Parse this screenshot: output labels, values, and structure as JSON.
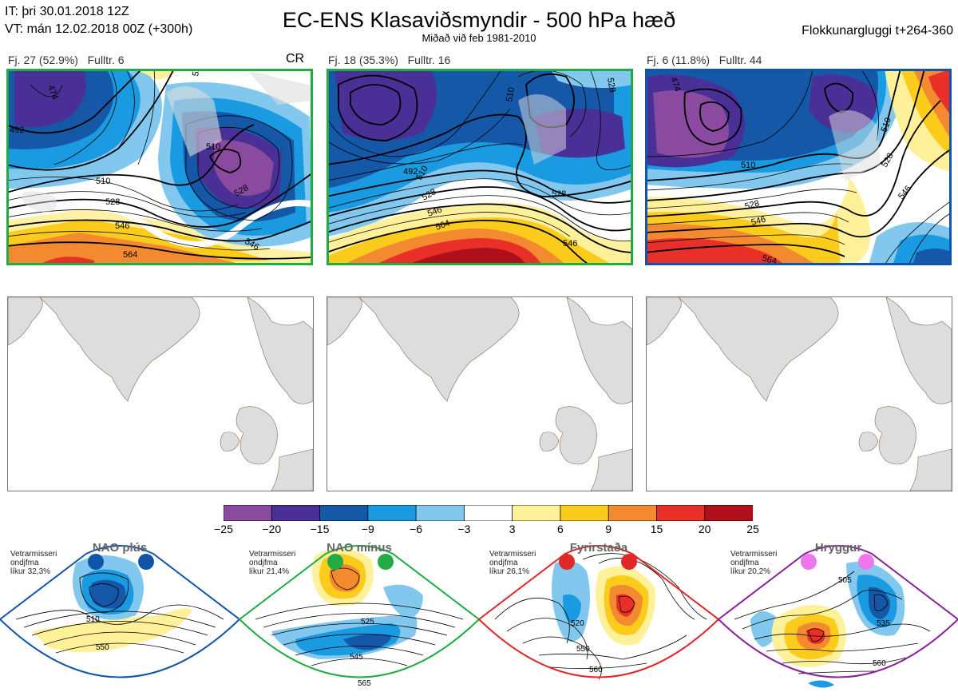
{
  "header": {
    "it_line": "IT: þri 30.01.2018 12Z",
    "vt_line": "VT: mán 12.02.2018 00Z  (+300h)",
    "title": "EC-ENS Klasaviðsmyndir - 500 hPa hæð",
    "subtitle": "Miðað við feb 1981-2010",
    "window": "Flokkunargluggi t+264-360"
  },
  "clusters": [
    {
      "label": "Fj. 27 (52.9%)",
      "rep": "Fulltr. 6",
      "tag": "CR",
      "border_color": "#22aa44",
      "contour_labels": [
        "474",
        "492",
        "510",
        "528",
        "546",
        "564",
        "510",
        "528",
        "546",
        "528"
      ]
    },
    {
      "label": "Fj. 18 (35.3%)",
      "rep": "Fulltr. 16",
      "tag": "",
      "border_color": "#22aa44",
      "contour_labels": [
        "492",
        "510",
        "528",
        "546",
        "564",
        "510",
        "528",
        "546",
        "528"
      ]
    },
    {
      "label": "Fj. 6 (11.8%)",
      "rep": "Fulltr. 44",
      "tag": "",
      "border_color": "#1155aa",
      "contour_labels": [
        "474",
        "510",
        "528",
        "546",
        "564",
        "510",
        "528",
        "546"
      ]
    }
  ],
  "colorbar": {
    "ticks": [
      "−25",
      "−20",
      "−15",
      "−9",
      "−6",
      "−3",
      "3",
      "6",
      "9",
      "15",
      "20",
      "25"
    ],
    "colors": [
      "#8a4aa0",
      "#4a2f96",
      "#1658a8",
      "#1a9ae0",
      "#82c8ee",
      "#ffffff",
      "#fff09a",
      "#fccc1c",
      "#f48a30",
      "#e83028",
      "#b0101c"
    ]
  },
  "regimes": [
    {
      "title": "NAO plús",
      "note_lines": [
        "Vetrarmisseri",
        "ondjfma",
        "líkur 32,3%"
      ],
      "color": "#1155aa",
      "contour_labels": [
        "510",
        "550"
      ]
    },
    {
      "title": "NAO mínus",
      "note_lines": [
        "Vetrarmisseri",
        "ondjfma",
        "líkur 21,4%"
      ],
      "color": "#22aa44",
      "contour_labels": [
        "525",
        "545",
        "565"
      ]
    },
    {
      "title": "Fyrirstaða",
      "note_lines": [
        "Vetrarmisseri",
        "ondjfma",
        "líkur 26,1%"
      ],
      "color": "#e02828",
      "contour_labels": [
        "520",
        "550",
        "560"
      ]
    },
    {
      "title": "Hryggur",
      "note_lines": [
        "Vetrarmisseri",
        "ondjfma",
        "líkur 20,2%"
      ],
      "color": "#882299",
      "contour_labels": [
        "505",
        "535",
        "560"
      ]
    }
  ]
}
